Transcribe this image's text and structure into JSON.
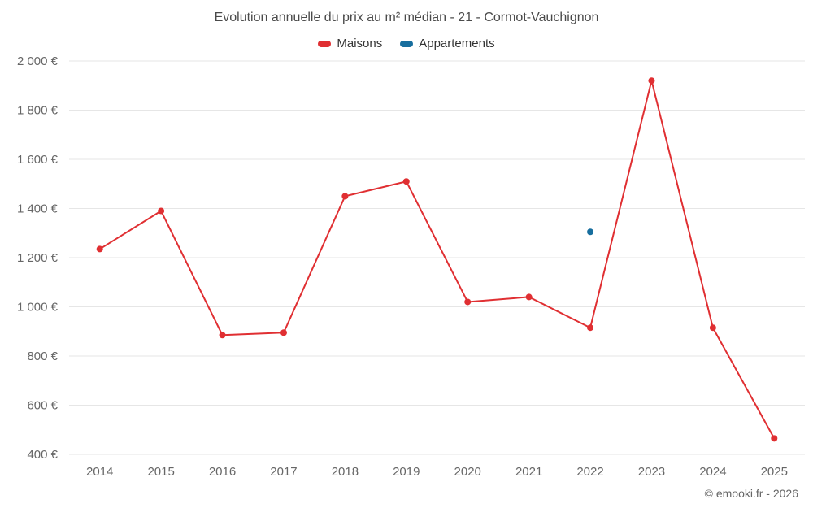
{
  "chart_data": {
    "type": "line",
    "title": "Evolution annuelle du prix au m² médian - 21 - Cormot-Vauchignon",
    "categories": [
      "2014",
      "2015",
      "2016",
      "2017",
      "2018",
      "2019",
      "2020",
      "2021",
      "2022",
      "2023",
      "2024",
      "2025"
    ],
    "series": [
      {
        "name": "Maisons",
        "color": "#e02f32",
        "values": [
          1235,
          1390,
          885,
          895,
          1450,
          1510,
          1020,
          1040,
          915,
          1920,
          915,
          465
        ]
      },
      {
        "name": "Appartements",
        "color": "#176e9e",
        "points": [
          {
            "category": "2022",
            "value": 1305
          }
        ]
      }
    ],
    "ylim": [
      400,
      2000
    ],
    "ytick_step": 200,
    "ytick_suffix": " €",
    "grid": "horizontal",
    "grid_color": "#e6e6e6",
    "legend_position": "top"
  },
  "footer": {
    "credit": "© emooki.fr - 2026"
  }
}
